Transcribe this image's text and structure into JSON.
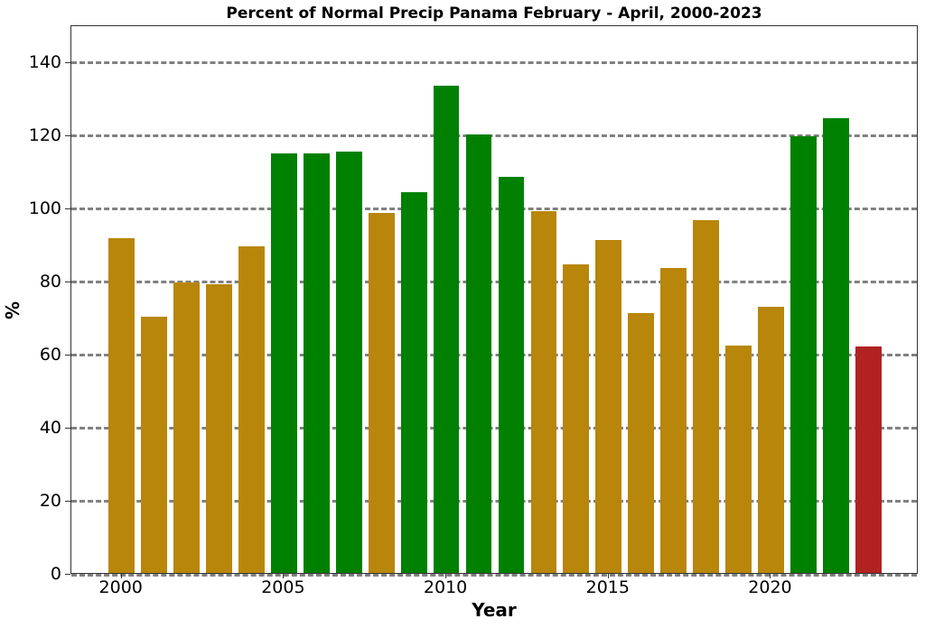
{
  "chart_data": {
    "type": "bar",
    "title": "Percent of Normal Precip Panama February - April, 2000-2023",
    "xlabel": "Year",
    "ylabel": "%",
    "ylim": [
      0,
      150
    ],
    "xlim": [
      1998.45,
      2024.55
    ],
    "yticks": [
      0,
      20,
      40,
      60,
      80,
      100,
      120,
      140
    ],
    "xticks": [
      2000,
      2005,
      2010,
      2015,
      2020
    ],
    "grid": "horizontal dashed gray",
    "categories": [
      2000,
      2001,
      2002,
      2003,
      2004,
      2005,
      2006,
      2007,
      2008,
      2009,
      2010,
      2011,
      2012,
      2013,
      2014,
      2015,
      2016,
      2017,
      2018,
      2019,
      2020,
      2021,
      2022,
      2023
    ],
    "values": [
      91.6,
      70.1,
      79.5,
      79.0,
      89.4,
      114.8,
      114.8,
      115.3,
      98.5,
      104.2,
      133.3,
      120.0,
      108.4,
      99.0,
      84.4,
      91.1,
      71.1,
      83.5,
      96.5,
      62.2,
      72.8,
      119.3,
      124.4,
      62.0
    ],
    "bar_colors": [
      "#b8860b",
      "#b8860b",
      "#b8860b",
      "#b8860b",
      "#b8860b",
      "#008000",
      "#008000",
      "#008000",
      "#b8860b",
      "#008000",
      "#008000",
      "#008000",
      "#008000",
      "#b8860b",
      "#b8860b",
      "#b8860b",
      "#b8860b",
      "#b8860b",
      "#b8860b",
      "#b8860b",
      "#b8860b",
      "#008000",
      "#008000",
      "#b22222"
    ],
    "color_legend": {
      "above_normal": "#008000",
      "below_normal": "#b8860b",
      "current_year": "#b22222"
    }
  }
}
